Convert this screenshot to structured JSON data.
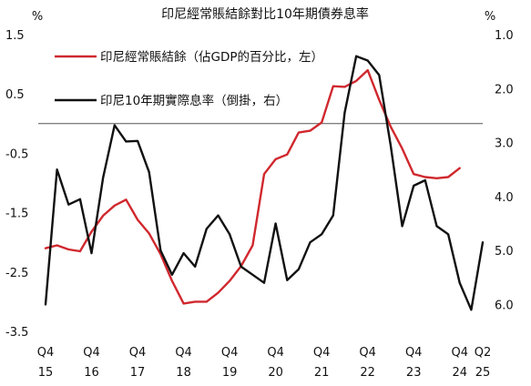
{
  "chart_data": {
    "type": "line",
    "title": "印尼經常賬結餘對比10年期債券息率",
    "left_axis": {
      "unit": "%",
      "ylim": [
        -3.5,
        1.5
      ],
      "ticks": [
        "1.5",
        "0.5",
        "-0.5",
        "-1.5",
        "-2.5",
        "-3.5"
      ]
    },
    "right_axis": {
      "unit": "%",
      "ylim": [
        1.0,
        6.5
      ],
      "inverted": true,
      "ticks": [
        "1.0",
        "2.0",
        "3.0",
        "4.0",
        "5.0",
        "6.0"
      ]
    },
    "x_ticks": [
      {
        "q": "Q4",
        "y": "15"
      },
      {
        "q": "Q4",
        "y": "16"
      },
      {
        "q": "Q4",
        "y": "17"
      },
      {
        "q": "Q4",
        "y": "18"
      },
      {
        "q": "Q4",
        "y": "19"
      },
      {
        "q": "Q4",
        "y": "20"
      },
      {
        "q": "Q4",
        "y": "21"
      },
      {
        "q": "Q4",
        "y": "22"
      },
      {
        "q": "Q4",
        "y": "23"
      },
      {
        "q": "Q4",
        "y": "24"
      },
      {
        "q": "Q2",
        "y": "25"
      }
    ],
    "reference_line": 0,
    "grid": false,
    "legend_position": "top-left",
    "series": [
      {
        "name": "印尼經常賬結餘（佔GDP的百分比，左）",
        "axis": "left",
        "color": "#d0282e",
        "start": "2015Q4",
        "values": [
          -2.1,
          -2.05,
          -2.12,
          -2.15,
          -1.82,
          -1.55,
          -1.38,
          -1.28,
          -1.62,
          -1.85,
          -2.2,
          -2.65,
          -3.03,
          -3.0,
          -3.0,
          -2.85,
          -2.65,
          -2.4,
          -2.05,
          -0.85,
          -0.6,
          -0.52,
          -0.15,
          -0.12,
          0.02,
          0.63,
          0.62,
          0.72,
          0.9,
          0.4,
          -0.05,
          -0.42,
          -0.85,
          -0.9,
          -0.92,
          -0.9,
          -0.75
        ]
      },
      {
        "name": "印尼10年期實際息率（倒掛，右）",
        "axis": "right",
        "color": "#111111",
        "start": "2015Q4",
        "values": [
          6.0,
          3.5,
          4.15,
          4.05,
          5.05,
          3.65,
          2.68,
          2.98,
          2.97,
          3.55,
          5.0,
          5.45,
          5.05,
          5.3,
          4.6,
          4.35,
          4.7,
          5.3,
          5.45,
          5.6,
          4.5,
          5.55,
          5.35,
          4.85,
          4.7,
          4.35,
          2.45,
          1.4,
          1.48,
          1.75,
          3.05,
          4.55,
          3.8,
          3.7,
          4.55,
          4.7,
          5.6,
          6.1,
          4.85
        ]
      }
    ]
  }
}
